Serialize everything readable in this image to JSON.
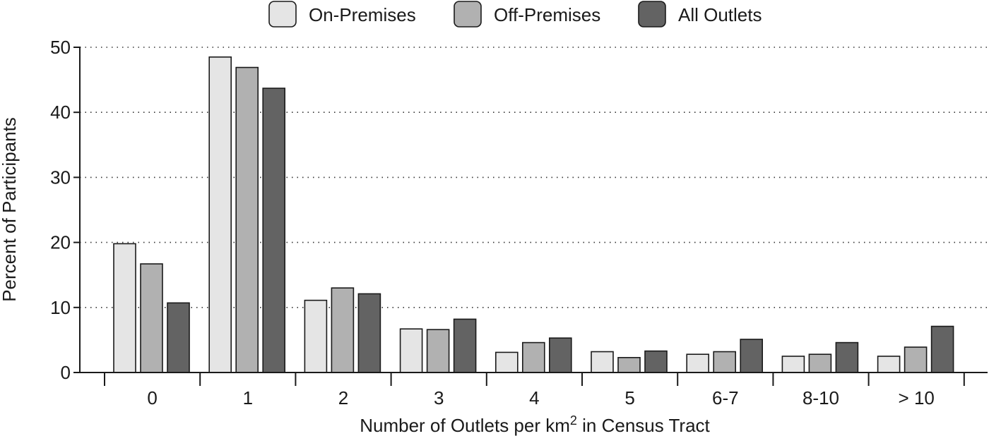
{
  "chart_data": {
    "type": "bar",
    "categories": [
      "0",
      "1",
      "2",
      "3",
      "4",
      "5",
      "6-7",
      "8-10",
      "> 10"
    ],
    "series": [
      {
        "name": "On-Premises",
        "color": "#e5e5e5",
        "values": [
          19.8,
          48.5,
          11.1,
          6.7,
          3.1,
          3.2,
          2.8,
          2.5,
          2.5
        ]
      },
      {
        "name": "Off-Premises",
        "color": "#b1b1b1",
        "values": [
          16.7,
          46.9,
          13.0,
          6.6,
          4.6,
          2.3,
          3.2,
          2.8,
          3.9
        ]
      },
      {
        "name": "All Outlets",
        "color": "#636363",
        "values": [
          10.7,
          43.7,
          12.1,
          8.2,
          5.3,
          3.3,
          5.1,
          4.6,
          7.1
        ]
      }
    ],
    "ylabel": "Percent of Participants",
    "xlabel": "Number of Outlets per km",
    "xlabel_superscript": "2",
    "xlabel_suffix": " in Census Tract",
    "ylim": [
      0,
      50
    ],
    "yticks": [
      "0",
      "10",
      "20",
      "30",
      "40",
      "50"
    ],
    "ytick_values": [
      0,
      10,
      20,
      30,
      40,
      50
    ],
    "grid": "horizontal dotted",
    "legend_position": "top"
  }
}
